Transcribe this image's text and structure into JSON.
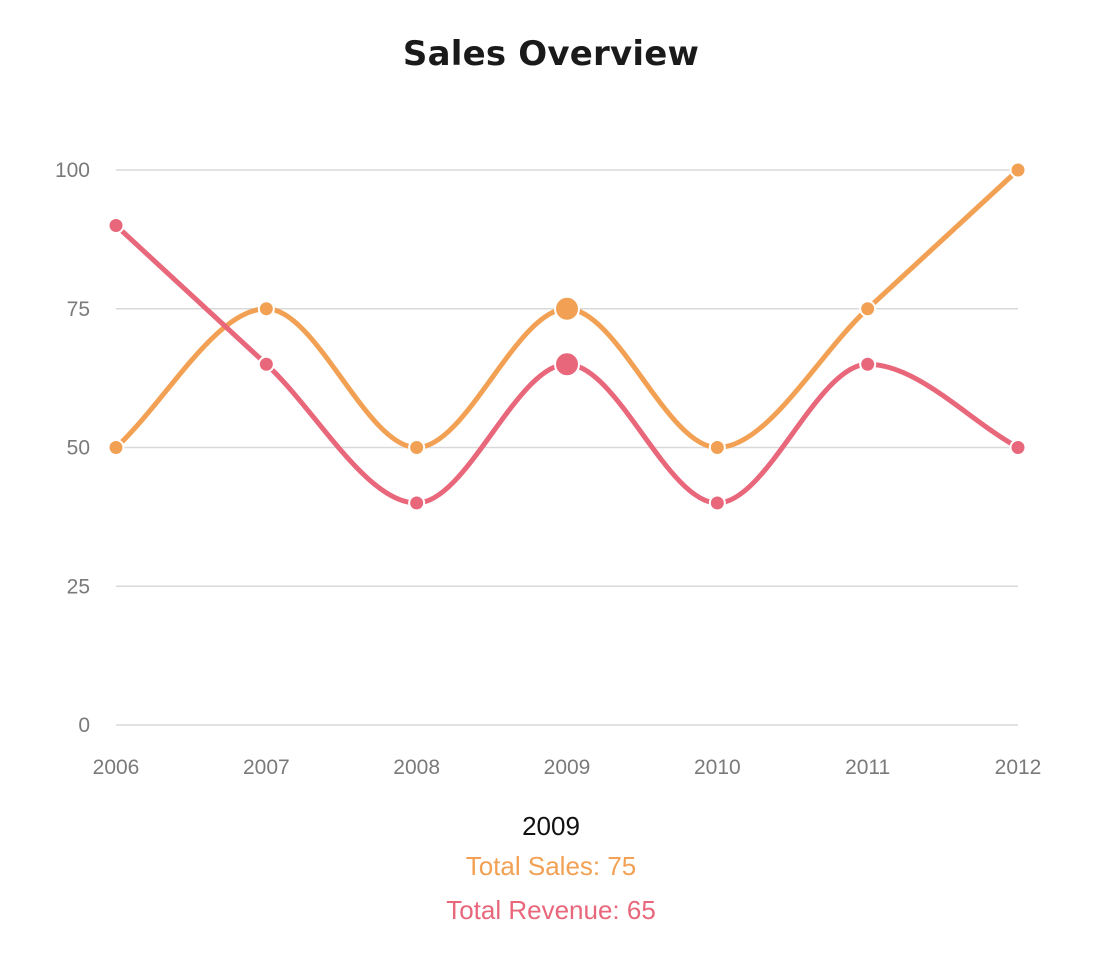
{
  "chart_data": {
    "type": "line",
    "title": "Sales Overview",
    "categories": [
      "2006",
      "2007",
      "2008",
      "2009",
      "2010",
      "2011",
      "2012"
    ],
    "series": [
      {
        "name": "Total Sales",
        "color": "#f2a154",
        "values": [
          50,
          75,
          50,
          75,
          50,
          75,
          100
        ]
      },
      {
        "name": "Total Revenue",
        "color": "#e8677b",
        "values": [
          90,
          65,
          40,
          65,
          40,
          65,
          50
        ]
      }
    ],
    "xlabel": "",
    "ylabel": "",
    "ylim": [
      0,
      100
    ],
    "yticks": [
      "0",
      "25",
      "50",
      "75",
      "100"
    ],
    "grid": true,
    "smooth": true,
    "highlighted_category": "2009"
  },
  "tooltip": {
    "title": "2009",
    "rows": [
      {
        "label": "Total Sales: 75",
        "color": "#f2a154"
      },
      {
        "label": "Total Revenue: 65",
        "color": "#e8677b"
      }
    ]
  }
}
